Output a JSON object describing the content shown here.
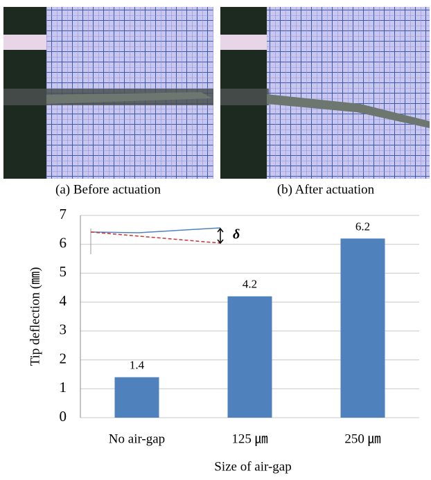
{
  "captions": [
    "(a) Before actuation",
    "(b) After actuation"
  ],
  "chart_data": {
    "type": "bar",
    "x_label": "Size of  air-gap",
    "y_label": "Tip deflection (㎜)",
    "annotation": "δ",
    "categories": [
      "No air-gap",
      "125 ㎛",
      "250 ㎛"
    ],
    "values": [
      1.4,
      4.2,
      6.2
    ],
    "color": "#4f81bd",
    "ylim": [
      0,
      7
    ],
    "yticks": [
      0,
      1,
      2,
      3,
      4,
      5,
      6,
      7
    ],
    "grid": true
  }
}
